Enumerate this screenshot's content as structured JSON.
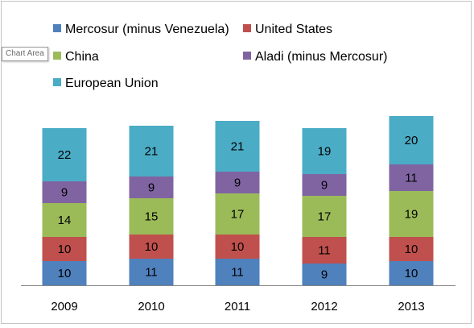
{
  "tooltip": "Chart Area",
  "chart_data": {
    "type": "bar",
    "stacked": true,
    "title": "",
    "xlabel": "",
    "ylabel": "",
    "categories": [
      "2009",
      "2010",
      "2011",
      "2012",
      "2013"
    ],
    "ylim": [
      0,
      70
    ],
    "grid": false,
    "legend_position": "top",
    "series": [
      {
        "name": "Mercosur (minus Venezuela)",
        "color": "#4f81bd",
        "values": [
          10,
          11,
          11,
          9,
          10
        ]
      },
      {
        "name": "United States",
        "color": "#c0504d",
        "values": [
          10,
          10,
          10,
          11,
          10
        ]
      },
      {
        "name": "China",
        "color": "#9bbb59",
        "values": [
          14,
          15,
          17,
          17,
          19
        ]
      },
      {
        "name": "Aladi (minus Mercosur)",
        "color": "#8064a2",
        "values": [
          9,
          9,
          9,
          9,
          11
        ]
      },
      {
        "name": "European Union",
        "color": "#4bacc6",
        "values": [
          22,
          21,
          21,
          19,
          20
        ]
      }
    ]
  }
}
